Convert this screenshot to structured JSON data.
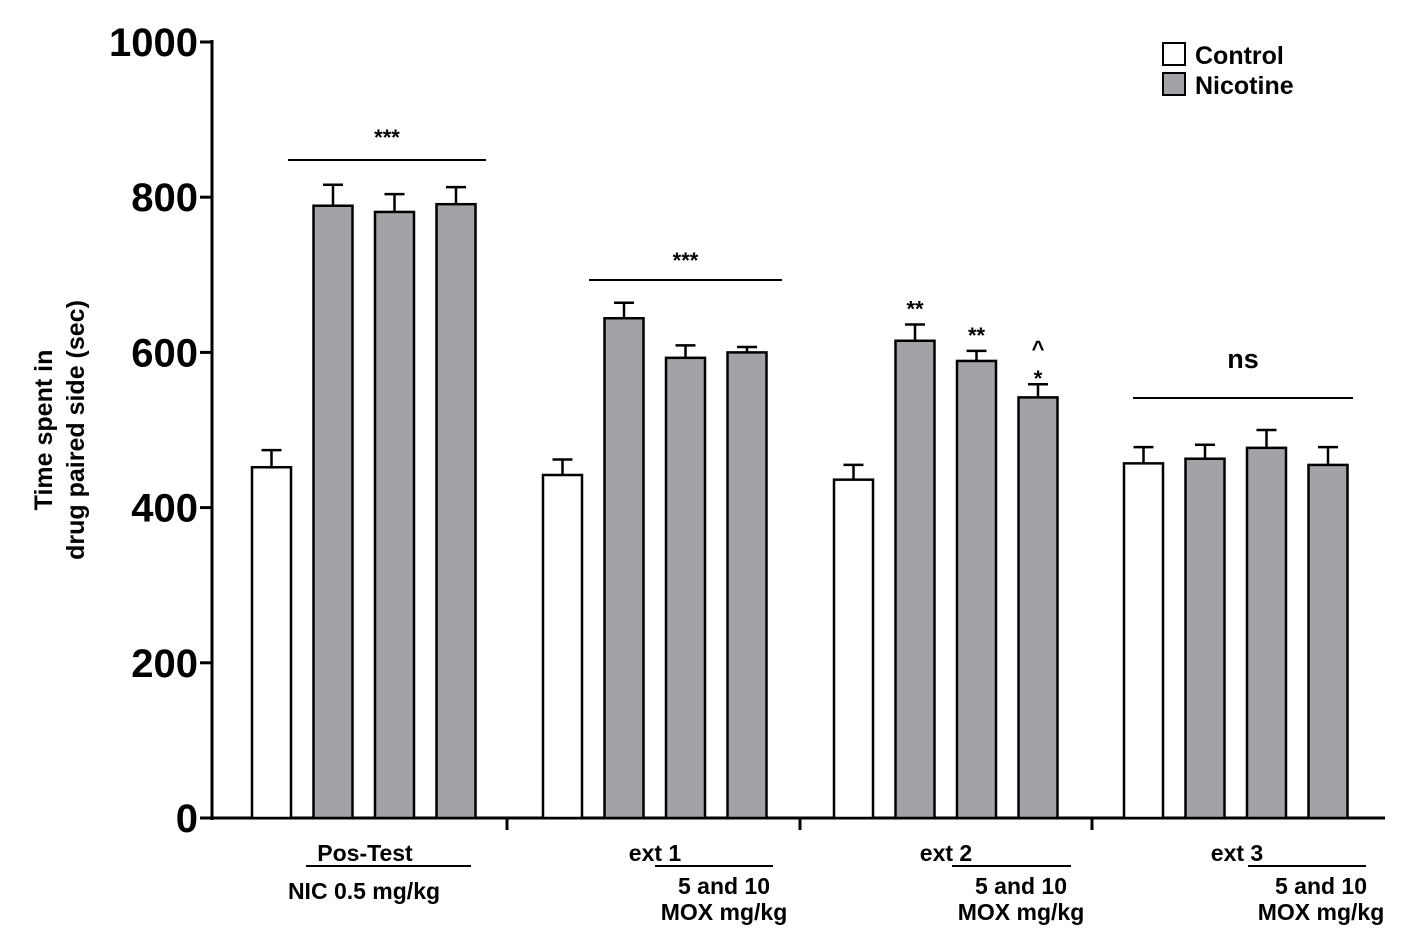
{
  "chart_data": {
    "type": "bar",
    "ylabel_lines": [
      "Time spent in",
      "drug paired side (sec)"
    ],
    "ylim": [
      0,
      1000
    ],
    "yticks": [
      "0",
      "200",
      "400",
      "600",
      "800",
      "1000"
    ],
    "legend": {
      "placement": "top-right",
      "items": [
        {
          "label": "Control",
          "color": "#ffffff"
        },
        {
          "label": "Nicotine",
          "color": "#a3a3a7"
        }
      ]
    },
    "groups": [
      {
        "label": "Pos-Test",
        "sub_label_lines": [
          "NIC 0.5 mg/kg"
        ]
      },
      {
        "label": "ext 1",
        "sub_label_lines": [
          "5 and 10",
          "MOX mg/kg"
        ]
      },
      {
        "label": "ext 2",
        "sub_label_lines": [
          "5 and 10",
          "MOX mg/kg"
        ]
      },
      {
        "label": "ext 3",
        "sub_label_lines": [
          "5 and 10",
          "MOX mg/kg"
        ]
      }
    ],
    "series": [
      {
        "name": "Control",
        "color": "#ffffff",
        "bars": [
          {
            "group": 0,
            "value": 452,
            "error": 22
          },
          {
            "group": 1,
            "value": 442,
            "error": 20
          },
          {
            "group": 2,
            "value": 436,
            "error": 19
          },
          {
            "group": 3,
            "value": 457,
            "error": 21
          }
        ]
      },
      {
        "name": "Nicotine",
        "color": "#a3a3a7",
        "bars": [
          {
            "group": 0,
            "value": 789,
            "error": 27
          },
          {
            "group": 0,
            "value": 781,
            "error": 23
          },
          {
            "group": 0,
            "value": 791,
            "error": 22
          },
          {
            "group": 1,
            "value": 644,
            "error": 20
          },
          {
            "group": 1,
            "value": 593,
            "error": 16
          },
          {
            "group": 1,
            "value": 600,
            "error": 7
          },
          {
            "group": 2,
            "value": 615,
            "error": 21
          },
          {
            "group": 2,
            "value": 589,
            "error": 13
          },
          {
            "group": 2,
            "value": 542,
            "error": 17
          },
          {
            "group": 3,
            "value": 463,
            "error": 18
          },
          {
            "group": 3,
            "value": 477,
            "error": 23
          },
          {
            "group": 3,
            "value": 455,
            "error": 23
          }
        ]
      }
    ],
    "annotations": [
      {
        "text": "***",
        "kind": "group-line",
        "group": 0
      },
      {
        "text": "***",
        "kind": "group-line",
        "group": 1
      },
      {
        "text": "ns",
        "kind": "group-line",
        "group": 3
      },
      {
        "text": "**",
        "kind": "bar",
        "group": 2,
        "bar": 0
      },
      {
        "text": "**",
        "kind": "bar",
        "group": 2,
        "bar": 1
      },
      {
        "text": "*",
        "kind": "bar",
        "group": 2,
        "bar": 2
      },
      {
        "text": "^",
        "kind": "bar",
        "group": 2,
        "bar": 2
      }
    ]
  }
}
